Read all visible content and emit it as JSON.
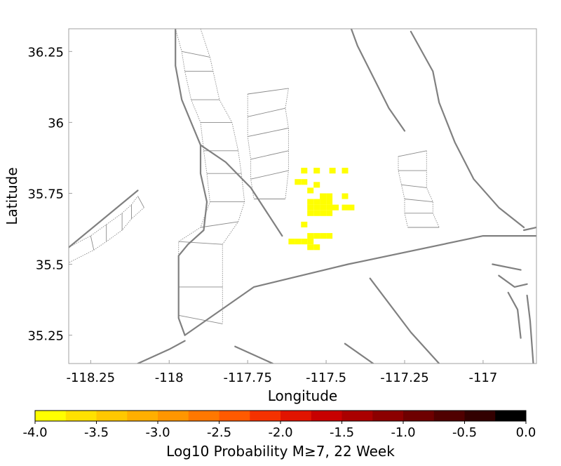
{
  "chart_data": {
    "type": "heatmap",
    "xlabel": "Longitude",
    "ylabel": "Latitude",
    "xlim": [
      -118.32,
      -116.83
    ],
    "ylim": [
      35.15,
      36.33
    ],
    "xticks": [
      {
        "value": -118.25,
        "label": "-118.25"
      },
      {
        "value": -118.0,
        "label": "-118"
      },
      {
        "value": -117.75,
        "label": "-117.75"
      },
      {
        "value": -117.5,
        "label": "-117.5"
      },
      {
        "value": -117.25,
        "label": "-117.25"
      },
      {
        "value": -117.0,
        "label": "-117"
      }
    ],
    "yticks": [
      {
        "value": 35.25,
        "label": "35.25"
      },
      {
        "value": 35.5,
        "label": "35.5"
      },
      {
        "value": 35.75,
        "label": "35.75"
      },
      {
        "value": 36.0,
        "label": "36"
      },
      {
        "value": 36.25,
        "label": "36.25"
      }
    ],
    "cell_size_deg": 0.02,
    "cells": [
      {
        "lon": -117.57,
        "lat": 35.83,
        "value": -4.0
      },
      {
        "lon": -117.53,
        "lat": 35.83,
        "value": -4.0
      },
      {
        "lon": -117.48,
        "lat": 35.83,
        "value": -4.0
      },
      {
        "lon": -117.44,
        "lat": 35.83,
        "value": -4.0
      },
      {
        "lon": -117.59,
        "lat": 35.79,
        "value": -4.0
      },
      {
        "lon": -117.57,
        "lat": 35.79,
        "value": -4.0
      },
      {
        "lon": -117.53,
        "lat": 35.78,
        "value": -4.0
      },
      {
        "lon": -117.55,
        "lat": 35.76,
        "value": -4.0
      },
      {
        "lon": -117.51,
        "lat": 35.74,
        "value": -4.0
      },
      {
        "lon": -117.49,
        "lat": 35.74,
        "value": -4.0
      },
      {
        "lon": -117.44,
        "lat": 35.74,
        "value": -4.0
      },
      {
        "lon": -117.55,
        "lat": 35.72,
        "value": -4.0
      },
      {
        "lon": -117.53,
        "lat": 35.72,
        "value": -4.0
      },
      {
        "lon": -117.51,
        "lat": 35.72,
        "value": -4.0
      },
      {
        "lon": -117.49,
        "lat": 35.72,
        "value": -4.0
      },
      {
        "lon": -117.55,
        "lat": 35.7,
        "value": -4.0
      },
      {
        "lon": -117.53,
        "lat": 35.7,
        "value": -4.0
      },
      {
        "lon": -117.51,
        "lat": 35.7,
        "value": -4.0
      },
      {
        "lon": -117.49,
        "lat": 35.7,
        "value": -4.0
      },
      {
        "lon": -117.47,
        "lat": 35.7,
        "value": -4.0
      },
      {
        "lon": -117.44,
        "lat": 35.7,
        "value": -4.0
      },
      {
        "lon": -117.42,
        "lat": 35.7,
        "value": -4.0
      },
      {
        "lon": -117.55,
        "lat": 35.68,
        "value": -4.0
      },
      {
        "lon": -117.53,
        "lat": 35.68,
        "value": -4.0
      },
      {
        "lon": -117.51,
        "lat": 35.68,
        "value": -4.0
      },
      {
        "lon": -117.49,
        "lat": 35.68,
        "value": -4.0
      },
      {
        "lon": -117.57,
        "lat": 35.64,
        "value": -4.0
      },
      {
        "lon": -117.55,
        "lat": 35.6,
        "value": -3.85
      },
      {
        "lon": -117.53,
        "lat": 35.6,
        "value": -3.85
      },
      {
        "lon": -117.51,
        "lat": 35.6,
        "value": -4.0
      },
      {
        "lon": -117.49,
        "lat": 35.6,
        "value": -4.0
      },
      {
        "lon": -117.61,
        "lat": 35.58,
        "value": -3.85
      },
      {
        "lon": -117.59,
        "lat": 35.58,
        "value": -3.85
      },
      {
        "lon": -117.57,
        "lat": 35.58,
        "value": -3.85
      },
      {
        "lon": -117.55,
        "lat": 35.58,
        "value": -4.0
      },
      {
        "lon": -117.55,
        "lat": 35.56,
        "value": -4.0
      },
      {
        "lon": -117.53,
        "lat": 35.56,
        "value": -4.0
      }
    ],
    "colorbar": {
      "title": "Log10 Probability M≥7, 22 Week",
      "min": -4.0,
      "max": 0.0,
      "ticks": [
        {
          "value": -4.0,
          "label": "-4.0"
        },
        {
          "value": -3.5,
          "label": "-3.5"
        },
        {
          "value": -3.0,
          "label": "-3.0"
        },
        {
          "value": -2.5,
          "label": "-2.5"
        },
        {
          "value": -2.0,
          "label": "-2.0"
        },
        {
          "value": -1.5,
          "label": "-1.5"
        },
        {
          "value": -1.0,
          "label": "-1.0"
        },
        {
          "value": -0.5,
          "label": "-0.5"
        },
        {
          "value": 0.0,
          "label": "0.0"
        }
      ],
      "colors": [
        "#ffff00",
        "#ffe100",
        "#ffc800",
        "#ffaf00",
        "#ff9600",
        "#ff7800",
        "#ff5a00",
        "#f53200",
        "#e11400",
        "#c80000",
        "#aa0000",
        "#8c0000",
        "#6e0000",
        "#500000",
        "#320000",
        "#000000"
      ]
    },
    "faults": [
      {
        "name": "fault-1",
        "points": [
          [
            -117.98,
            36.33
          ],
          [
            -117.98,
            36.2
          ],
          [
            -117.96,
            36.08
          ],
          [
            -117.93,
            36.0
          ],
          [
            -117.9,
            35.92
          ],
          [
            -117.9,
            35.82
          ],
          [
            -117.88,
            35.72
          ],
          [
            -117.89,
            35.62
          ],
          [
            -117.94,
            35.57
          ],
          [
            -117.97,
            35.53
          ],
          [
            -117.97,
            35.42
          ],
          [
            -117.97,
            35.31
          ],
          [
            -117.95,
            35.25
          ]
        ]
      },
      {
        "name": "fault-2",
        "points": [
          [
            -117.9,
            35.92
          ],
          [
            -117.82,
            35.86
          ],
          [
            -117.74,
            35.77
          ],
          [
            -117.64,
            35.6
          ]
        ]
      },
      {
        "name": "fault-3",
        "points": [
          [
            -117.95,
            35.25
          ],
          [
            -117.73,
            35.42
          ],
          [
            -117.43,
            35.5
          ],
          [
            -117.0,
            35.6
          ],
          [
            -116.83,
            35.6
          ]
        ]
      },
      {
        "name": "fault-4",
        "points": [
          [
            -118.33,
            35.55
          ],
          [
            -118.1,
            35.76
          ]
        ]
      },
      {
        "name": "fault-5",
        "points": [
          [
            -117.95,
            35.23
          ],
          [
            -118.0,
            35.2
          ],
          [
            -118.1,
            35.15
          ]
        ]
      },
      {
        "name": "fault-6",
        "points": [
          [
            -117.67,
            35.15
          ],
          [
            -117.79,
            35.21
          ]
        ]
      },
      {
        "name": "fault-7",
        "points": [
          [
            -117.35,
            35.15
          ],
          [
            -117.44,
            35.22
          ]
        ]
      },
      {
        "name": "fault-8",
        "points": [
          [
            -117.14,
            35.15
          ],
          [
            -117.23,
            35.26
          ],
          [
            -117.36,
            35.45
          ]
        ]
      },
      {
        "name": "fault-9",
        "points": [
          [
            -117.42,
            36.33
          ],
          [
            -117.4,
            36.27
          ],
          [
            -117.35,
            36.16
          ],
          [
            -117.3,
            36.05
          ],
          [
            -117.25,
            35.97
          ]
        ]
      },
      {
        "name": "fault-10",
        "points": [
          [
            -117.23,
            36.32
          ],
          [
            -117.16,
            36.18
          ],
          [
            -117.14,
            36.07
          ],
          [
            -117.09,
            35.93
          ],
          [
            -117.03,
            35.8
          ],
          [
            -116.95,
            35.7
          ],
          [
            -116.87,
            35.63
          ]
        ]
      },
      {
        "name": "fault-11",
        "points": [
          [
            -116.97,
            35.5
          ],
          [
            -116.88,
            35.48
          ]
        ]
      },
      {
        "name": "fault-12",
        "points": [
          [
            -116.95,
            35.46
          ],
          [
            -116.9,
            35.42
          ],
          [
            -116.86,
            35.43
          ]
        ]
      },
      {
        "name": "fault-13",
        "points": [
          [
            -116.92,
            35.4
          ],
          [
            -116.89,
            35.34
          ],
          [
            -116.88,
            35.24
          ]
        ]
      },
      {
        "name": "fault-14",
        "points": [
          [
            -116.86,
            35.39
          ],
          [
            -116.85,
            35.3
          ],
          [
            -116.84,
            35.15
          ]
        ]
      },
      {
        "name": "fault-15",
        "points": [
          [
            -116.87,
            35.62
          ],
          [
            -116.83,
            35.63
          ]
        ]
      }
    ],
    "fault_zones": [
      {
        "name": "zone-1",
        "left": [
          [
            -117.98,
            36.33
          ],
          [
            -117.96,
            36.25
          ],
          [
            -117.95,
            36.18
          ],
          [
            -117.93,
            36.08
          ],
          [
            -117.9,
            36.0
          ],
          [
            -117.89,
            35.9
          ],
          [
            -117.88,
            35.82
          ],
          [
            -117.87,
            35.72
          ],
          [
            -117.9,
            35.63
          ],
          [
            -117.97,
            35.58
          ],
          [
            -117.97,
            35.42
          ],
          [
            -117.97,
            35.32
          ]
        ],
        "right": [
          [
            -117.9,
            36.33
          ],
          [
            -117.87,
            36.23
          ],
          [
            -117.86,
            36.18
          ],
          [
            -117.84,
            36.08
          ],
          [
            -117.8,
            36.0
          ],
          [
            -117.78,
            35.9
          ],
          [
            -117.77,
            35.82
          ],
          [
            -117.76,
            35.72
          ],
          [
            -117.78,
            35.65
          ],
          [
            -117.83,
            35.57
          ],
          [
            -117.83,
            35.42
          ],
          [
            -117.83,
            35.29
          ]
        ]
      },
      {
        "name": "zone-2",
        "left": [
          [
            -117.75,
            36.1
          ],
          [
            -117.75,
            36.02
          ],
          [
            -117.75,
            35.95
          ],
          [
            -117.74,
            35.87
          ],
          [
            -117.74,
            35.8
          ],
          [
            -117.73,
            35.73
          ]
        ],
        "right": [
          [
            -117.62,
            36.12
          ],
          [
            -117.63,
            36.05
          ],
          [
            -117.62,
            35.98
          ],
          [
            -117.62,
            35.9
          ],
          [
            -117.62,
            35.83
          ],
          [
            -117.63,
            35.73
          ]
        ]
      },
      {
        "name": "zone-3",
        "left": [
          [
            -117.27,
            35.88
          ],
          [
            -117.27,
            35.83
          ],
          [
            -117.26,
            35.78
          ],
          [
            -117.25,
            35.73
          ],
          [
            -117.25,
            35.68
          ],
          [
            -117.24,
            35.63
          ]
        ],
        "right": [
          [
            -117.18,
            35.9
          ],
          [
            -117.18,
            35.83
          ],
          [
            -117.18,
            35.77
          ],
          [
            -117.16,
            35.72
          ],
          [
            -117.16,
            35.68
          ],
          [
            -117.14,
            35.63
          ]
        ]
      },
      {
        "name": "zone-4",
        "left": [
          [
            -118.33,
            35.5
          ],
          [
            -118.24,
            35.55
          ],
          [
            -118.2,
            35.58
          ],
          [
            -118.15,
            35.62
          ],
          [
            -118.12,
            35.66
          ],
          [
            -118.08,
            35.7
          ]
        ],
        "right": [
          [
            -118.32,
            35.56
          ],
          [
            -118.25,
            35.6
          ],
          [
            -118.2,
            35.64
          ],
          [
            -118.15,
            35.68
          ],
          [
            -118.12,
            35.71
          ],
          [
            -118.1,
            35.74
          ]
        ]
      }
    ]
  }
}
